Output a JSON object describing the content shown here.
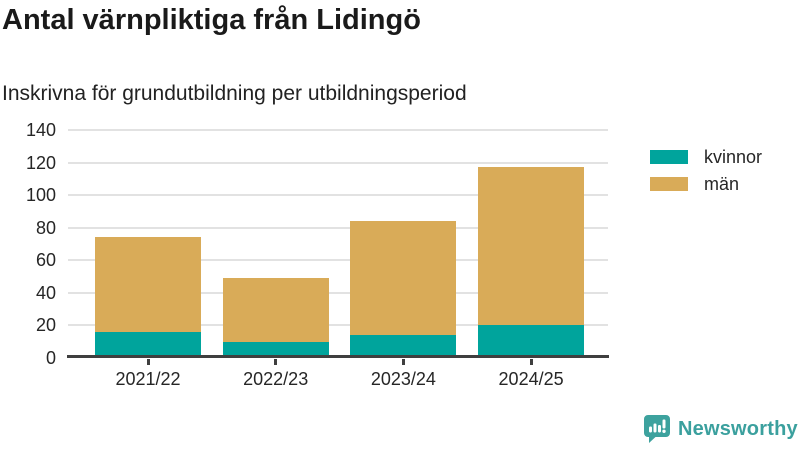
{
  "header": {
    "title": "Antal värnpliktiga från Lidingö",
    "subtitle": "Inskrivna för grundutbildning per utbildningsperiod"
  },
  "chart_data": {
    "type": "bar",
    "stacked": true,
    "title": "Antal värnpliktiga från Lidingö",
    "subtitle": "Inskrivna för grundutbildning per utbildningsperiod",
    "categories": [
      "2021/22",
      "2022/23",
      "2023/24",
      "2024/25"
    ],
    "series": [
      {
        "name": "kvinnor",
        "color": "#00a49c",
        "values": [
          16,
          10,
          14,
          20
        ]
      },
      {
        "name": "män",
        "color": "#d9ab58",
        "values": [
          58,
          39,
          70,
          97
        ]
      }
    ],
    "totals": [
      74,
      49,
      84,
      117
    ],
    "xlabel": "",
    "ylabel": "",
    "ylim": [
      0,
      140
    ],
    "yticks": [
      0,
      20,
      40,
      60,
      80,
      100,
      120,
      140
    ],
    "grid": true,
    "legend_position": "right"
  },
  "legend": {
    "items": [
      {
        "label": "kvinnor",
        "color": "#00a49c"
      },
      {
        "label": "män",
        "color": "#d9ab58"
      }
    ]
  },
  "footer": {
    "brand": "Newsworthy"
  },
  "colors": {
    "background": "#ffffff",
    "grid": "#e2e2e2",
    "axis": "#3f3f3f",
    "text": "#262626",
    "title_text": "#1a1a1a",
    "brand_teal": "#3ba09e",
    "series_kvinnor": "#00a49c",
    "series_man": "#d9ab58"
  }
}
